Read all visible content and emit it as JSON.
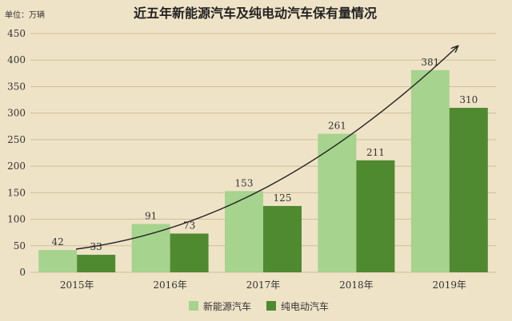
{
  "chart_data": {
    "type": "bar",
    "title": "近五年新能源汽车及纯电动汽车保有量情况",
    "unit_label": "单位：万辆",
    "categories": [
      "2015年",
      "2016年",
      "2017年",
      "2018年",
      "2019年"
    ],
    "series": [
      {
        "name": "新能源汽车",
        "values": [
          42,
          91,
          153,
          261,
          381
        ],
        "color": "#a6d38d"
      },
      {
        "name": "纯电动汽车",
        "values": [
          33,
          73,
          125,
          211,
          310
        ],
        "color": "#4f8a31"
      }
    ],
    "ylim": [
      0,
      450
    ],
    "yticks": [
      0,
      50,
      100,
      150,
      200,
      250,
      300,
      350,
      400,
      450
    ],
    "grid": true,
    "legend_position": "bottom",
    "trend_arrow": true
  }
}
